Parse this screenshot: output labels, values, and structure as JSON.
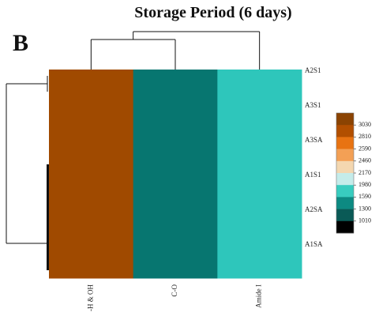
{
  "chart_data": {
    "type": "heatmap",
    "title": "Storage Period (6 days)",
    "panel_label": "B",
    "columns": [
      "-H & OH",
      "C-O",
      "Amide I"
    ],
    "rows": [
      "A2S1",
      "A3S1",
      "A3SA",
      "A1S1",
      "A2SA",
      "A1SA"
    ],
    "values": [
      [
        3030,
        1100,
        1590
      ],
      [
        3030,
        1100,
        1590
      ],
      [
        3030,
        1100,
        1590
      ],
      [
        3030,
        1100,
        1590
      ],
      [
        3030,
        1100,
        1590
      ],
      [
        3030,
        1100,
        1590
      ]
    ],
    "legend": {
      "ticks": [
        3030,
        2810,
        2590,
        2460,
        2170,
        1980,
        1590,
        1300,
        1010
      ],
      "colors": [
        "#8b4302",
        "#b24f00",
        "#e87312",
        "#f3a055",
        "#f4d7b0",
        "#c5ecea",
        "#38ccbf",
        "#0d8a82",
        "#0a5a56",
        "#000000"
      ]
    },
    "cell_colors": {
      "-H & OH": "#a04a00",
      "C-O": "#077670",
      "Amide I": "#2ec6bb"
    },
    "row_dendrogram": true,
    "column_dendrogram": true
  }
}
